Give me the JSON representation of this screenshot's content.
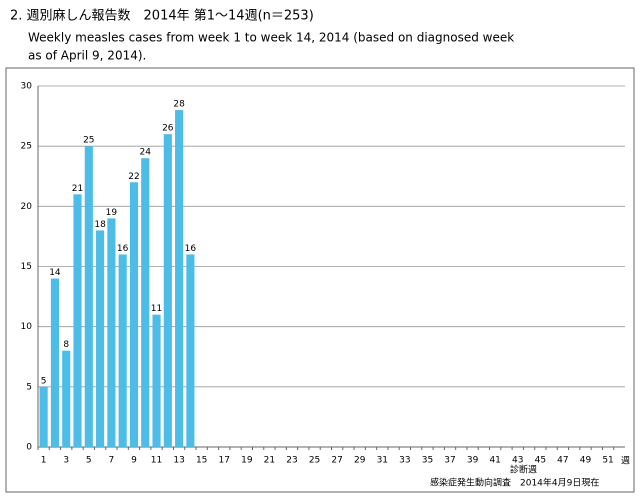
{
  "chart_data": {
    "type": "bar",
    "title": "2. 週別麻しん報告数　2014年 第1～14週(n＝253)",
    "subtitle": [
      "Weekly measles cases from week 1 to week 14, 2014 (based on diagnosed week",
      "as of  April 9, 2014)."
    ],
    "x_unit": "週",
    "footer": [
      "診断週",
      "感染症発生動向調査　2014年4月9日現在"
    ],
    "categories": [
      1,
      null,
      3,
      null,
      5,
      null,
      7,
      null,
      9,
      null,
      11,
      null,
      13,
      null,
      15,
      null,
      17,
      null,
      19,
      null,
      21,
      null,
      23,
      null,
      25,
      null,
      27,
      null,
      29,
      null,
      31,
      null,
      33,
      null,
      35,
      null,
      37,
      null,
      39,
      null,
      41,
      null,
      43,
      null,
      45,
      null,
      47,
      null,
      49,
      null,
      51,
      null
    ],
    "values": [
      5,
      14,
      8,
      21,
      25,
      18,
      19,
      16,
      22,
      24,
      11,
      26,
      28,
      16,
      null,
      null,
      null,
      null,
      null,
      null,
      null,
      null,
      null,
      null,
      null,
      null,
      null,
      null,
      null,
      null,
      null,
      null,
      null,
      null,
      null,
      null,
      null,
      null,
      null,
      null,
      null,
      null,
      null,
      null,
      null,
      null,
      null,
      null,
      null,
      null,
      null,
      null
    ],
    "color": "#4cbde6",
    "ylim": [
      0,
      30
    ],
    "yticks": [
      0,
      5,
      10,
      15,
      20,
      25,
      30
    ],
    "grid": true
  }
}
